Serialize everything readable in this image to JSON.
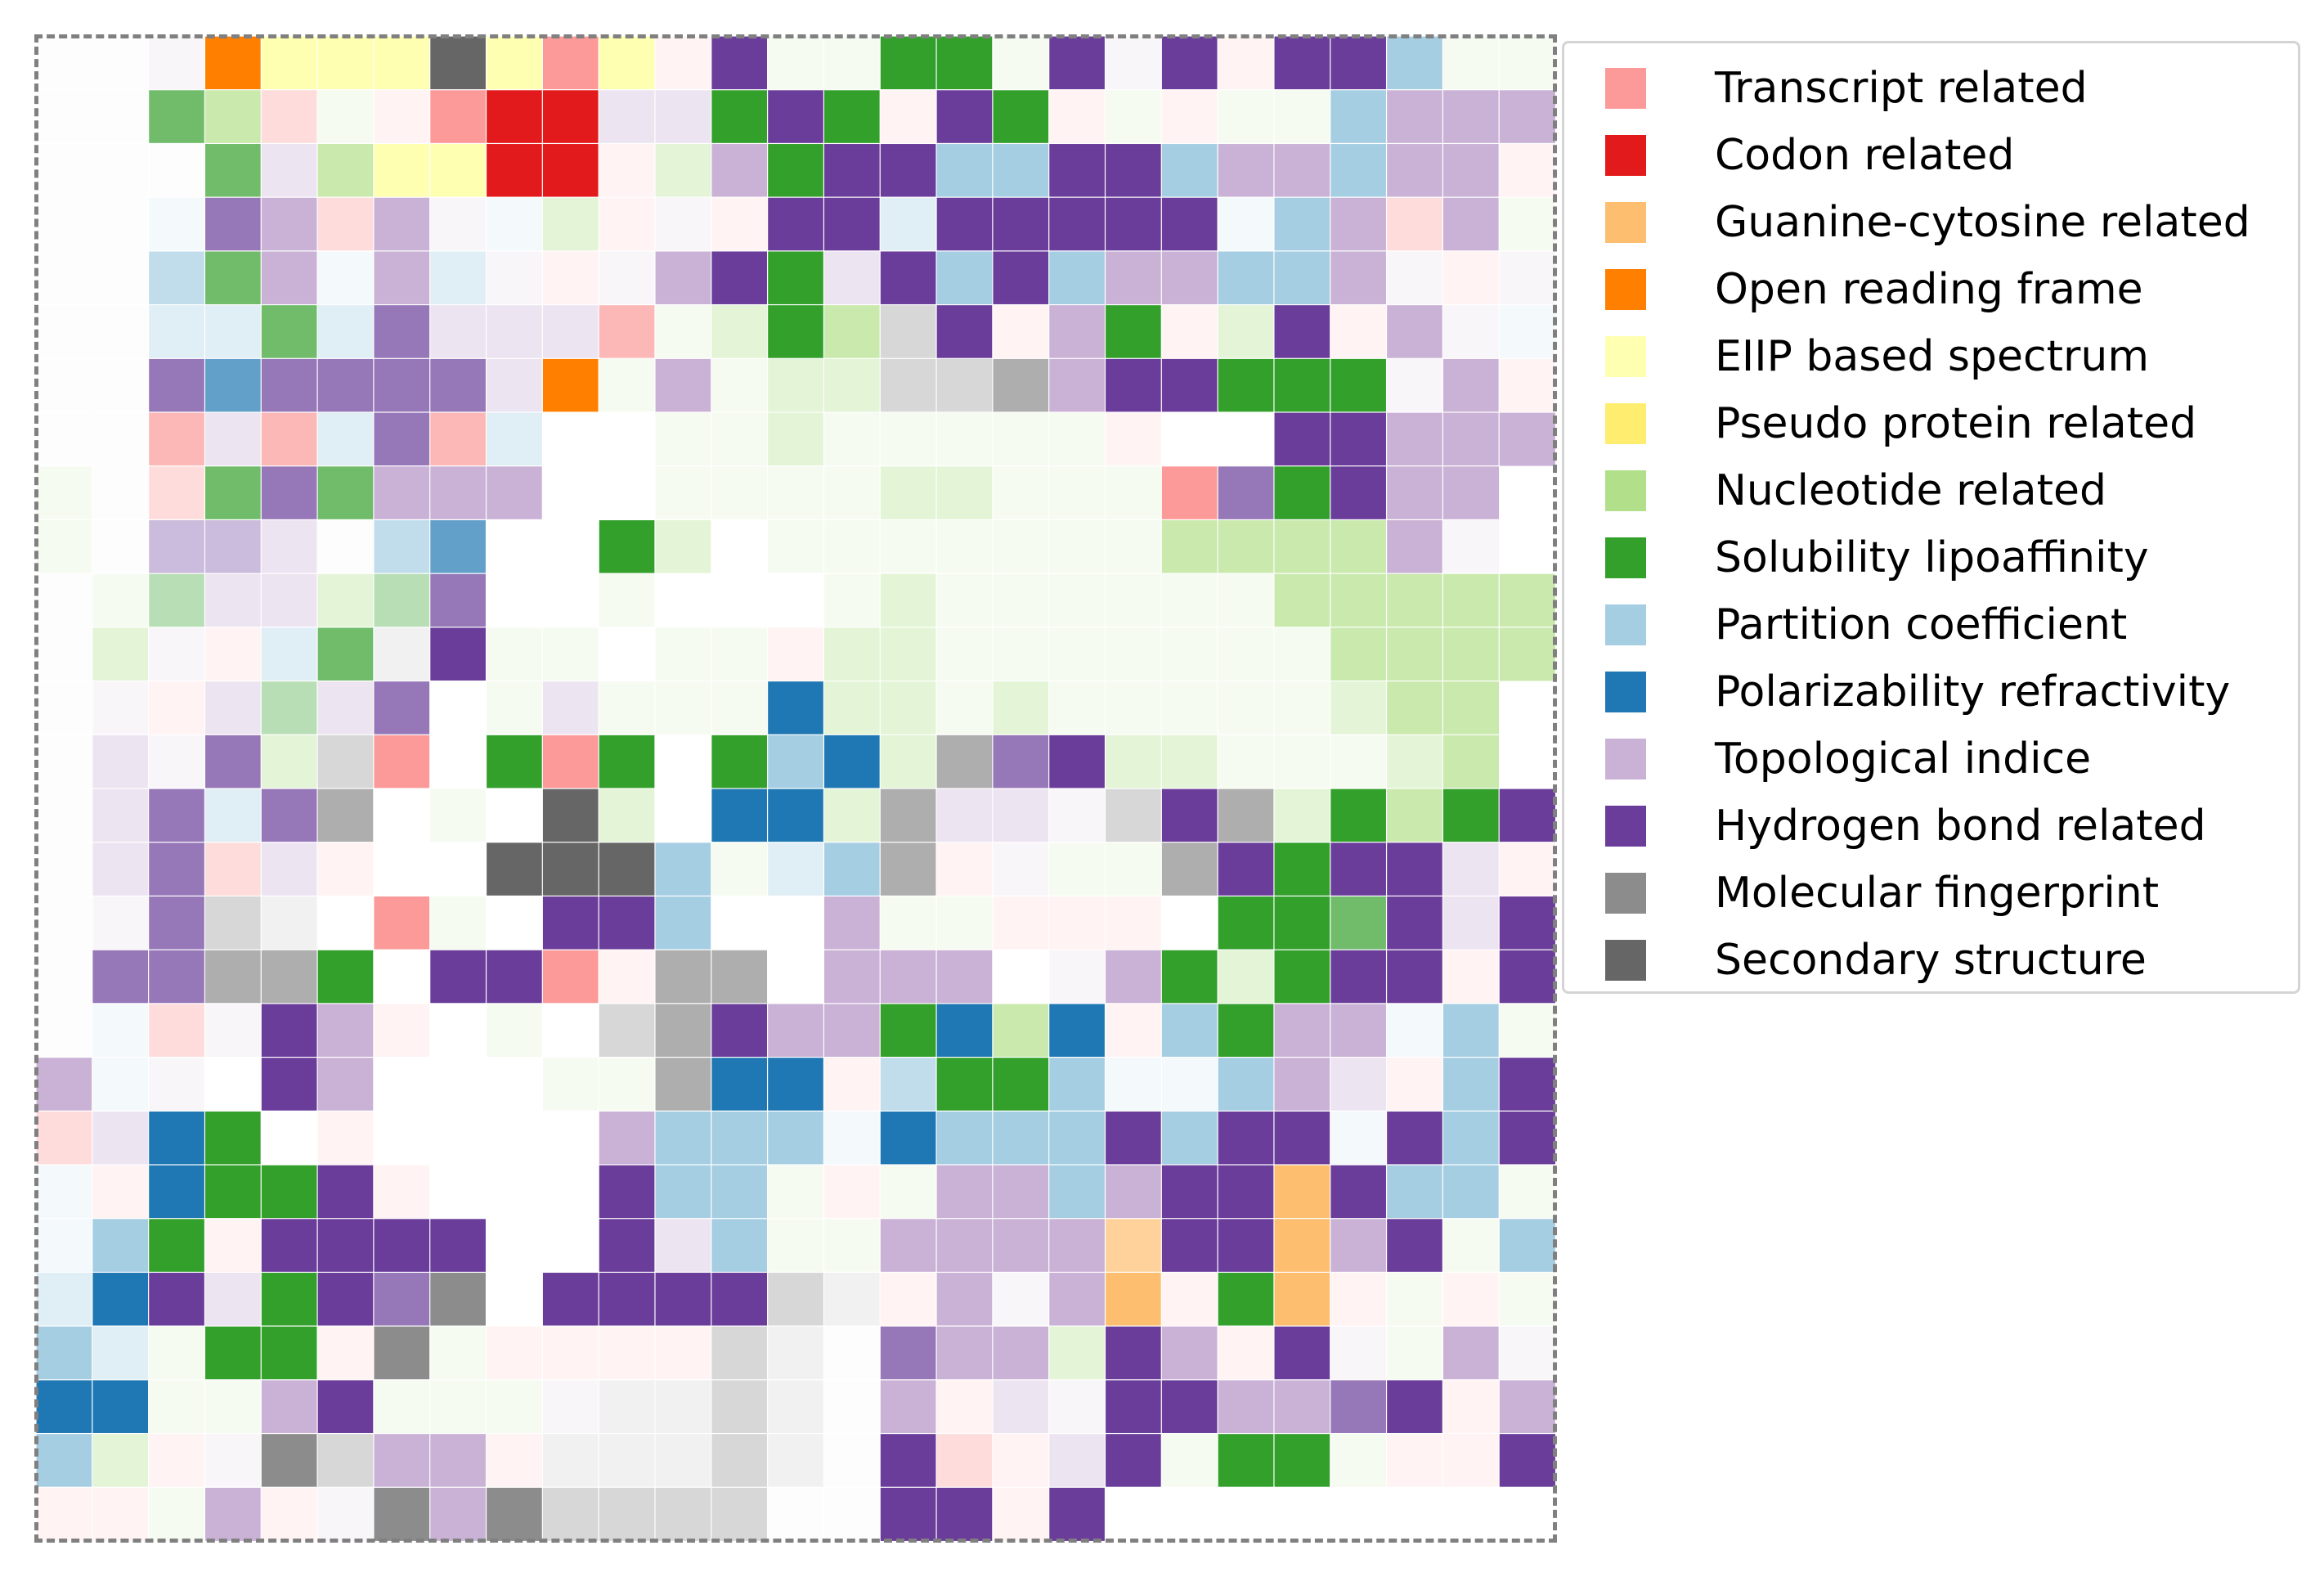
{
  "chart_data": {
    "type": "heatmap",
    "title": "",
    "legend_position": "right",
    "legend": [
      {
        "label": "Transcript related",
        "color": "#fb9a99"
      },
      {
        "label": "Codon related",
        "color": "#e31a1c"
      },
      {
        "label": "Guanine-cytosine related",
        "color": "#fdbf6f"
      },
      {
        "label": "Open reading frame",
        "color": "#ff7f00"
      },
      {
        "label": "EIIP based spectrum",
        "color": "#ffffb2"
      },
      {
        "label": "Pseudo protein related",
        "color": "#ffed6f"
      },
      {
        "label": "Nucleotide related",
        "color": "#b2df8a"
      },
      {
        "label": "Solubility lipoaffinity",
        "color": "#33a02c"
      },
      {
        "label": "Partition coefficient",
        "color": "#a6cee3"
      },
      {
        "label": "Polarizability refractivity",
        "color": "#1f78b4"
      },
      {
        "label": "Topological indice",
        "color": "#cab2d6"
      },
      {
        "label": "Hydrogen bond related",
        "color": "#6a3d9a"
      },
      {
        "label": "Molecular fingerprint",
        "color": "#8c8c8c"
      },
      {
        "label": "Secondary structure",
        "color": "#666666"
      }
    ],
    "palette": {
      "T": "#fb9a99",
      "C": "#e31a1c",
      "G": "#fdbf6f",
      "O": "#ff7f00",
      "E": "#ffffb2",
      "N": "#b2df8a",
      "S": "#33a02c",
      "P": "#a6cee3",
      "R": "#1f78b4",
      "I": "#cab2d6",
      "H": "#6a3d9a",
      "F": "#8c8c8c",
      "D": "#666666"
    },
    "cell_alpha": {
      "u": 0.12,
      "l": 0.35,
      "m": 0.7,
      "": 1.0
    },
    "matrix": [
      "-u -u Iu O E E E D E T E Tu H Nu Nu S S Nu H Iu H Tu H H P Nu Nu",
      "-u -u Sm Nm Tl Nu Tu T C C Il Il S H S Tu H S Tu Nu Tu Nu Nu P I I I",
      "-u -u -u Sm Il Nm E E C C Tu Nl I S H H P P H H P I I P I I Tu",
      "-u -u Pu Hm I Tl I Iu Pu Nl Tu Iu Tu H H Pl H H H H H Pu P I Tl I Nu",
      "-u -u Pm Sm I Pu I Pl Iu Tu Iu I H S Il H P H P I I P P I Iu Tu Iu",
      "-u -u Pl Pl Sm Pl Hm Il Il Il Tm Nu Nl S Nm Fl H Tu I S Tu Nl H Tu I Iu Pu",
      "-u -u Hm Rm Hm Hm Hm Hm Il O Nu I Nu Nl Nl Fl Fl Fm I H H S S S Iu I Tu",
      "-u -u Tm Il Tm Pl Hm Tm Pl - - Nu Nu Nl Nu Nu Nu Nu Nu Tu - - H H I I I",
      "Nu -u Tl Sm Hm Sm I I I - - Nu Nu Nu Nu Nl Nl Nu Nu Nu T Hm S H I I",
      "Nu -u Hl Hl Il -u Pm Rm - - S Nl - Nu Nu Nu Nu Nu Nu Nu Nm Nm Nm Nm I Iu",
      "-u Nu Sl Il Il Nl Sl Hm - - Nu - - - Nu Nl Nu Nu Nu Nu Nu Nu Nm Nm Nm Nm Nm",
      "-u Nl Iu Tu Pl Sm Fu H Nu Nu - Nu Nu Tu Nl Nl Nu Nu Nu Nu Nu Nu Nu Nm Nm Nm Nm",
      "-u Iu Tu Il Sl Il Hm - Nu Il Nu Nu Nu R Nl Nl Nu Nl Nu Nu Nu Nu Nu Nl Nm Nm",
      "-u Il Iu Hm Nl Fl T - S T S - S P R Nl Fm Hm H Nl Nl Nu Nu Nu Nl Nm",
      "-u Il Hm Pl Hm Fm - Nu - D Nl - R R Nl Fm Il Il Iu Fl H Fm Nl S Nm S H",
      "-u Il Hm Tl Il Tu - - D D D P Nu Pl P Fm Tu Iu Nu Nu Fm H S H H Il Tu",
      "-u Iu Hm Fl Fu - T Nu - H H P - - I Nu Nu Tu Tu Tu - S S Sm H Il H",
      "-u Hm Hm Fm Fm S - H H T Tu Fm Fm - I I I - Iu I S Nl S H H Tu H",
      "-u Pu Tl Iu H I Tu - Nu - Fl Fm H I I S R Nm R Tu P S I I Pu P Nu",
      "I Pu Iu - H I - - - Nu Nu Fm R R Tu Pm S S P Pu Pu P I Il Tu P H",
      "Tl Il R S - Tu - - - - I P P P Pu R P P P H P H H Pu H P H",
      "Pu Tu R S S H Tu - - - H P P Nu Tu Nu I I P I H H G H P P Nu",
      "Pu P S Tu H H H H - - H Il P Nu Nu I I I I Gm H H G I H Nu P",
      "Pl R H Il S H Hm F - H H H H Fl Fu Tu I Iu I G Tu S G Tu Nu Tu Nu",
      "P Pl Nu S S Tu F Nu Tu Tu Tu Tu Fl Fu -u Hm I I Nl H I Tu H Iu Nu I Iu",
      "R R Nu Nu I H Nu Nu Nu Iu Fu Fu Fl Fu -u I Tu Il Iu H H I I Hm H Tu I",
      "P Nl Tu Iu F Fl I I Tu Fu Fu Fu Fl Fu -u H Tl Tu Il H Nu S S Nu Tu Tu H",
      "Tu Tu Nu I Tu Iu F I F Fl Fl Fl Fl -u -u H H Tu H - - - - - - - -"
    ]
  }
}
